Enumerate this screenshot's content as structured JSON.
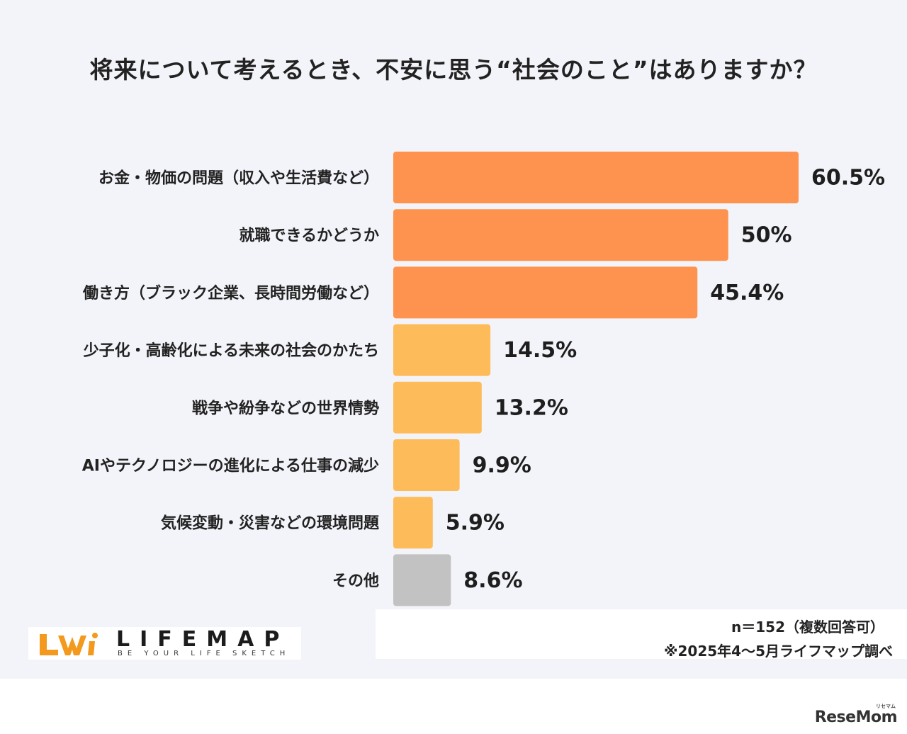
{
  "chart_data": {
    "type": "bar",
    "orientation": "horizontal",
    "title": "将来について考えるとき、不安に思う“社会のこと”はありますか？",
    "categories": [
      "お金・物価の問題（収入や生活費など）",
      "就職できるかどうか",
      "働き方（ブラック企業、長時間労働など）",
      "少子化・高齢化による未来の社会のかたち",
      "戦争や紛争などの世界情勢",
      "AIやテクノロジーの進化による仕事の減少",
      "気候変動・災害などの環境問題",
      "その他"
    ],
    "values": [
      60.5,
      50,
      45.4,
      14.5,
      13.2,
      9.9,
      5.9,
      8.6
    ],
    "value_labels": [
      "60.5%",
      "50%",
      "45.4%",
      "14.5%",
      "13.2%",
      "9.9%",
      "5.9%",
      "8.6%"
    ],
    "bar_colors": [
      "#fd934e",
      "#fd934e",
      "#fd934e",
      "#fdbb5a",
      "#fdbb5a",
      "#fdbb5a",
      "#fdbb5a",
      "#c2c2c2"
    ],
    "xlim": [
      0,
      60.5
    ],
    "grid": false,
    "legend": "none"
  },
  "footer": {
    "sample_note": "n＝152（複数回答可）",
    "source_note": "※2025年4〜5月ライフマップ調べ"
  },
  "logo": {
    "name": "LIFEMAP",
    "tagline": "BE YOUR LIFE SKETCH",
    "accent": "#f39a1e"
  },
  "watermark": {
    "text": "ReseMom",
    "small": "リセマム"
  }
}
